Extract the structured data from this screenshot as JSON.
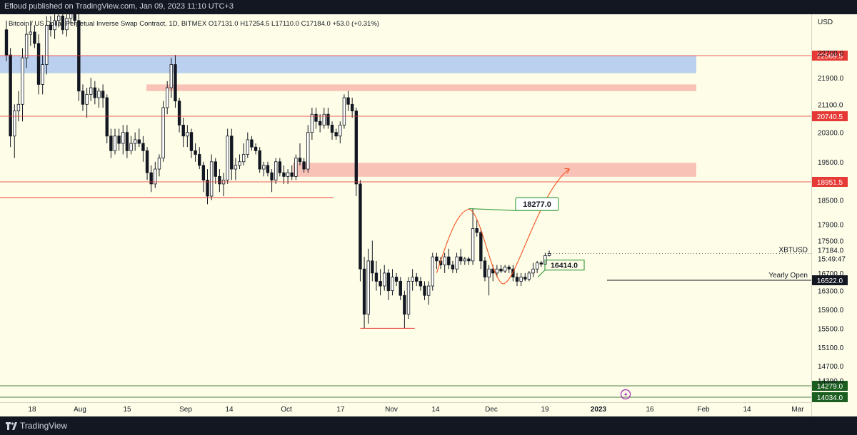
{
  "header": {
    "publisher": "Efloud published on TradingView.com, Jan 09, 2023 11:10 UTC+3"
  },
  "footer": {
    "brand": "TradingView"
  },
  "chart_data": {
    "type": "candlestick",
    "legend": "Bitcoin / US Dollar Perpetual Inverse Swap Contract, 1D, BITMEX  O17131.0  H17254.5  L17110.0  C17184.0  +53.0 (+0.31%)",
    "currency": "USD",
    "symbol": "XBTUSD",
    "countdown": "15:49:47",
    "y_ticks": [
      22700,
      21900,
      21100,
      20300,
      19500,
      18500,
      17900,
      17500,
      16700,
      16300,
      15900,
      15500,
      15100,
      14700,
      14390
    ],
    "x_ticks": [
      "18",
      "Aug",
      "15",
      "Sep",
      "14",
      "Oct",
      "17",
      "Nov",
      "14",
      "Dec",
      "19",
      "2023",
      "16",
      "Feb",
      "14",
      "Mar"
    ],
    "horizontal_levels": [
      {
        "label": "22569.5",
        "value": 22569.5,
        "color": "#e53935"
      },
      {
        "label": "20740.5",
        "value": 20740.5,
        "color": "#e53935"
      },
      {
        "label": "18951.5",
        "value": 18951.5,
        "color": "#e53935"
      },
      {
        "label": "14279.0",
        "value": 14279.0,
        "color": "#1b5e20"
      },
      {
        "label": "14034.0",
        "value": 14034.0,
        "color": "#1b5e20"
      }
    ],
    "yearly_open": {
      "name": "Yearly Open",
      "value": 16522.0,
      "label": "16522.0"
    },
    "last_price": {
      "value": 17184.0,
      "label": "17184.0"
    },
    "zones": [
      {
        "kind": "supply",
        "color": "#aec8ee",
        "from": 22040,
        "to": 22569
      },
      {
        "kind": "resistance",
        "color": "#f7b7ae",
        "from": 21500,
        "to": 21700
      },
      {
        "kind": "resistance",
        "color": "#f7b7ae",
        "from": 19090,
        "to": 19470
      }
    ],
    "annotations": [
      {
        "text": "18277.0",
        "kind": "target-label"
      },
      {
        "text": "16414.0",
        "kind": "range-label"
      }
    ],
    "candles": [
      [
        23700,
        24100,
        22400,
        22600
      ],
      [
        22600,
        22900,
        19900,
        20200
      ],
      [
        20200,
        21100,
        19600,
        20900
      ],
      [
        20900,
        21500,
        20600,
        21100
      ],
      [
        21100,
        22900,
        20600,
        22500
      ],
      [
        22500,
        23900,
        22200,
        23500
      ],
      [
        23500,
        24100,
        23000,
        23600
      ],
      [
        23600,
        23900,
        22900,
        23100
      ],
      [
        23100,
        23500,
        21400,
        21700
      ],
      [
        21700,
        22600,
        21400,
        22300
      ],
      [
        22300,
        24300,
        22000,
        23900
      ],
      [
        23900,
        24300,
        23400,
        23700
      ],
      [
        23700,
        24500,
        23300,
        24100
      ],
      [
        24100,
        24800,
        23800,
        24300
      ],
      [
        24300,
        24900,
        23500,
        23700
      ],
      [
        23700,
        24500,
        23400,
        24200
      ],
      [
        24200,
        25100,
        23900,
        24500
      ],
      [
        24500,
        24800,
        23900,
        24100
      ],
      [
        24100,
        24400,
        21200,
        21500
      ],
      [
        21500,
        21700,
        20900,
        21100
      ],
      [
        21100,
        21600,
        20700,
        21400
      ],
      [
        21400,
        21900,
        21200,
        21600
      ],
      [
        21600,
        21800,
        21100,
        21300
      ],
      [
        21300,
        21600,
        21000,
        21500
      ],
      [
        21500,
        21700,
        21000,
        21300
      ],
      [
        21300,
        21400,
        20000,
        20200
      ],
      [
        20200,
        20400,
        19600,
        19800
      ],
      [
        19800,
        20400,
        19700,
        20200
      ],
      [
        20200,
        20400,
        19800,
        20000
      ],
      [
        20000,
        20500,
        19700,
        20300
      ],
      [
        20300,
        20500,
        19600,
        19800
      ],
      [
        19800,
        20200,
        19700,
        20000
      ],
      [
        20000,
        20300,
        19800,
        20100
      ],
      [
        20100,
        20400,
        19900,
        20000
      ],
      [
        20000,
        20200,
        19500,
        19800
      ],
      [
        19800,
        19900,
        19000,
        19200
      ],
      [
        19200,
        19400,
        18700,
        18900
      ],
      [
        18900,
        19500,
        18800,
        19300
      ],
      [
        19300,
        19700,
        19100,
        19600
      ],
      [
        19600,
        21200,
        19500,
        21000
      ],
      [
        21000,
        21800,
        20800,
        21600
      ],
      [
        21600,
        22500,
        21300,
        22300
      ],
      [
        22300,
        22600,
        21000,
        21200
      ],
      [
        21200,
        21300,
        20300,
        20500
      ],
      [
        20500,
        20700,
        19900,
        20200
      ],
      [
        20200,
        20500,
        19900,
        20300
      ],
      [
        20300,
        20400,
        19600,
        19800
      ],
      [
        19800,
        20000,
        19500,
        19700
      ],
      [
        19700,
        19900,
        19300,
        19400
      ],
      [
        19400,
        19500,
        18700,
        19000
      ],
      [
        19000,
        19300,
        18400,
        18600
      ],
      [
        18600,
        19700,
        18500,
        19500
      ],
      [
        19500,
        19600,
        18900,
        19100
      ],
      [
        19100,
        19300,
        18700,
        18900
      ],
      [
        18900,
        19200,
        18600,
        19000
      ],
      [
        19000,
        20400,
        18900,
        20200
      ],
      [
        20200,
        20400,
        19000,
        19300
      ],
      [
        19300,
        19600,
        19000,
        19400
      ],
      [
        19400,
        19700,
        19300,
        19500
      ],
      [
        19500,
        20000,
        19400,
        19700
      ],
      [
        19700,
        20300,
        19600,
        20100
      ],
      [
        20100,
        20200,
        19800,
        19900
      ],
      [
        19900,
        20000,
        19700,
        19800
      ],
      [
        19800,
        19900,
        19200,
        19300
      ],
      [
        19300,
        19500,
        19100,
        19400
      ],
      [
        19400,
        19500,
        19100,
        19200
      ],
      [
        19200,
        19300,
        18700,
        19000
      ],
      [
        19000,
        19600,
        18900,
        19500
      ],
      [
        19500,
        19600,
        19100,
        19200
      ],
      [
        19200,
        19400,
        18900,
        19100
      ],
      [
        19100,
        19300,
        18900,
        19200
      ],
      [
        19200,
        19400,
        19000,
        19100
      ],
      [
        19100,
        19700,
        19000,
        19600
      ],
      [
        19600,
        20000,
        19400,
        19500
      ],
      [
        19500,
        19600,
        19200,
        19300
      ],
      [
        19300,
        20500,
        19200,
        20300
      ],
      [
        20300,
        21000,
        20100,
        20800
      ],
      [
        20800,
        21000,
        20400,
        20600
      ],
      [
        20600,
        20800,
        20300,
        20500
      ],
      [
        20500,
        21000,
        20400,
        20800
      ],
      [
        20800,
        21000,
        20400,
        20500
      ],
      [
        20500,
        20600,
        20100,
        20300
      ],
      [
        20300,
        20400,
        20100,
        20200
      ],
      [
        20200,
        20600,
        20000,
        20500
      ],
      [
        20500,
        21400,
        20400,
        21300
      ],
      [
        21300,
        21500,
        20900,
        21100
      ],
      [
        21100,
        21300,
        20700,
        20900
      ],
      [
        20900,
        21000,
        18600,
        18900
      ],
      [
        18900,
        19000,
        16500,
        16800
      ],
      [
        16800,
        17100,
        15500,
        15800
      ],
      [
        15800,
        17300,
        15600,
        17000
      ],
      [
        17000,
        17500,
        16500,
        16700
      ],
      [
        16700,
        17000,
        16300,
        16500
      ],
      [
        16500,
        16800,
        16200,
        16400
      ],
      [
        16400,
        16900,
        16300,
        16700
      ],
      [
        16700,
        16800,
        16100,
        16300
      ],
      [
        16300,
        16800,
        16200,
        16600
      ],
      [
        16600,
        16700,
        16400,
        16500
      ],
      [
        16500,
        16600,
        16100,
        16200
      ],
      [
        16200,
        16300,
        15500,
        15800
      ],
      [
        15800,
        16600,
        15700,
        16500
      ],
      [
        16500,
        16800,
        16300,
        16600
      ],
      [
        16600,
        16700,
        16400,
        16500
      ],
      [
        16500,
        16600,
        16300,
        16400
      ],
      [
        16400,
        16500,
        16100,
        16200
      ],
      [
        16200,
        16500,
        16000,
        16400
      ],
      [
        16400,
        17200,
        16300,
        17100
      ],
      [
        17100,
        17200,
        16800,
        17000
      ],
      [
        17000,
        17100,
        16800,
        16900
      ],
      [
        16900,
        17200,
        16700,
        17100
      ],
      [
        17100,
        17300,
        16800,
        16900
      ],
      [
        16900,
        17000,
        16700,
        16800
      ],
      [
        16800,
        17200,
        16700,
        17100
      ],
      [
        17100,
        17300,
        16900,
        17000
      ],
      [
        17000,
        17100,
        16900,
        17050
      ],
      [
        17050,
        17100,
        16900,
        17000
      ],
      [
        17000,
        18300,
        16900,
        17800
      ],
      [
        17800,
        18000,
        17600,
        17700
      ],
      [
        17700,
        17800,
        16800,
        17000
      ],
      [
        17000,
        17100,
        16500,
        16600
      ],
      [
        16600,
        16900,
        16200,
        16800
      ],
      [
        16800,
        16900,
        16500,
        16700
      ],
      [
        16700,
        16900,
        16600,
        16800
      ],
      [
        16800,
        16900,
        16700,
        16750
      ],
      [
        16750,
        16900,
        16700,
        16850
      ],
      [
        16850,
        16900,
        16700,
        16800
      ],
      [
        16800,
        16900,
        16500,
        16600
      ],
      [
        16600,
        16700,
        16400,
        16500
      ],
      [
        16500,
        16700,
        16400,
        16600
      ],
      [
        16600,
        16700,
        16500,
        16550
      ],
      [
        16550,
        16750,
        16500,
        16700
      ],
      [
        16700,
        16950,
        16600,
        16800
      ],
      [
        16800,
        17000,
        16700,
        16950
      ],
      [
        16950,
        17000,
        16850,
        16920
      ],
      [
        16920,
        17200,
        16900,
        17131
      ],
      [
        17131,
        17254.5,
        17110,
        17184
      ]
    ]
  }
}
